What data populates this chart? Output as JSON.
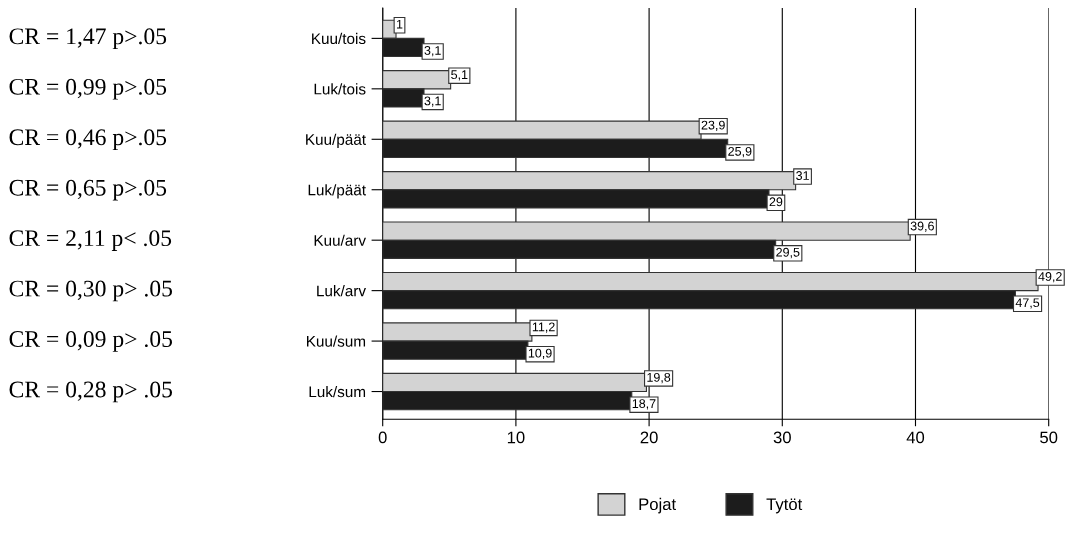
{
  "chart_data": {
    "type": "bar",
    "orientation": "horizontal",
    "categories": [
      "Kuu/tois",
      "Luk/tois",
      "Kuu/päät",
      "Luk/päät",
      "Kuu/arv",
      "Luk/arv",
      "Kuu/sum",
      "Luk/sum"
    ],
    "series": [
      {
        "name": "Pojat",
        "color": "#d3d3d3",
        "values": [
          1,
          5.1,
          23.9,
          31,
          39.6,
          49.2,
          11.2,
          19.8
        ],
        "value_labels": [
          "1",
          "5,1",
          "23,9",
          "31",
          "39,6",
          "49,2",
          "11,2",
          "19,8"
        ]
      },
      {
        "name": "Tytöt",
        "color": "#1c1c1c",
        "values": [
          3.1,
          3.1,
          25.9,
          29,
          29.5,
          47.5,
          10.9,
          18.7
        ],
        "value_labels": [
          "3,1",
          "3,1",
          "25,9",
          "29",
          "29,5",
          "47,5",
          "10,9",
          "18,7"
        ]
      }
    ],
    "xlim": [
      0,
      50
    ],
    "xticks": [
      0,
      10,
      20,
      30,
      40,
      50
    ],
    "grid": "x",
    "legend": "bottom",
    "annotations": [
      "CR = 1,47 p>.05",
      "CR = 0,99 p>.05",
      "CR = 0,46 p>.05",
      "CR = 0,65 p>.05",
      "CR = 2,11 p< .05",
      "CR = 0,30 p> .05",
      "CR = 0,09 p> .05",
      "CR = 0,28 p> .05"
    ]
  }
}
